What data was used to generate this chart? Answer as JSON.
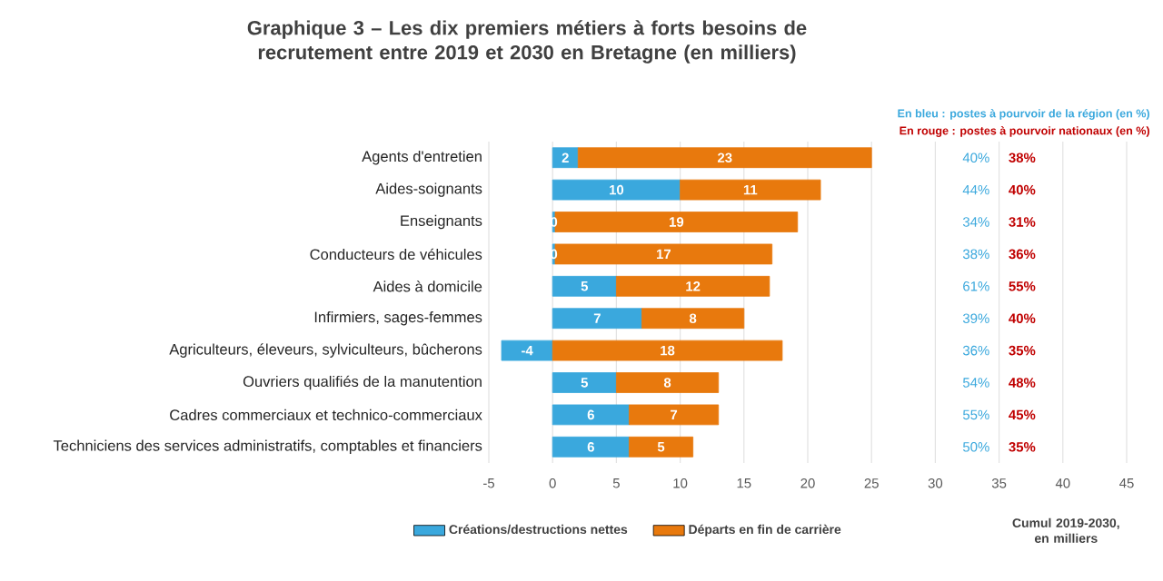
{
  "chart_data": {
    "type": "bar",
    "orientation": "horizontal",
    "stacked": true,
    "title": "Graphique 3 – Les dix premiers métiers à forts besoins de recrutement entre 2019 et 2030 en Bretagne (en milliers)",
    "xlabel": "Cumul 2019-2030, en milliers",
    "categories": [
      "Agents d'entretien",
      "Aides-soignants",
      "Enseignants",
      "Conducteurs de véhicules",
      "Aides à domicile",
      "Infirmiers, sages-femmes",
      "Agriculteurs, éleveurs, sylviculteurs, bûcherons",
      "Ouvriers qualifiés de la manutention",
      "Cadres commerciaux et technico-commerciaux",
      "Techniciens des services administratifs, comptables et financiers"
    ],
    "series": [
      {
        "name": "Créations/destructions nettes",
        "color": "#3aa8dd",
        "values": [
          2,
          10,
          0.2,
          0.2,
          5,
          7,
          -4,
          5,
          6,
          6
        ],
        "value_labels": [
          "2",
          "10",
          "0",
          "0",
          "5",
          "7",
          "-4",
          "5",
          "6",
          "6"
        ]
      },
      {
        "name": "Départs en fin de carrière",
        "color": "#e8790d",
        "values": [
          23,
          11,
          19,
          17,
          12,
          8,
          18,
          8,
          7,
          5
        ],
        "value_labels": [
          "23",
          "11",
          "19",
          "17",
          "12",
          "8",
          "18",
          "8",
          "7",
          "5"
        ]
      }
    ],
    "xlim": [
      -5,
      45
    ],
    "xticks": [
      -5,
      0,
      5,
      10,
      15,
      20,
      25,
      30,
      35,
      40,
      45
    ],
    "grid": "x",
    "legend": "bottom",
    "annotations": [
      "En bleu : postes à pourvoir de la région (en %)",
      "En rouge : postes à pourvoir nationaux (en %)",
      "40%",
      "44%",
      "34%",
      "38%",
      "61%",
      "39%",
      "36%",
      "54%",
      "55%",
      "50%",
      "38%",
      "40%",
      "31%",
      "36%",
      "55%",
      "40%",
      "35%",
      "48%",
      "45%",
      "35%"
    ]
  }
}
